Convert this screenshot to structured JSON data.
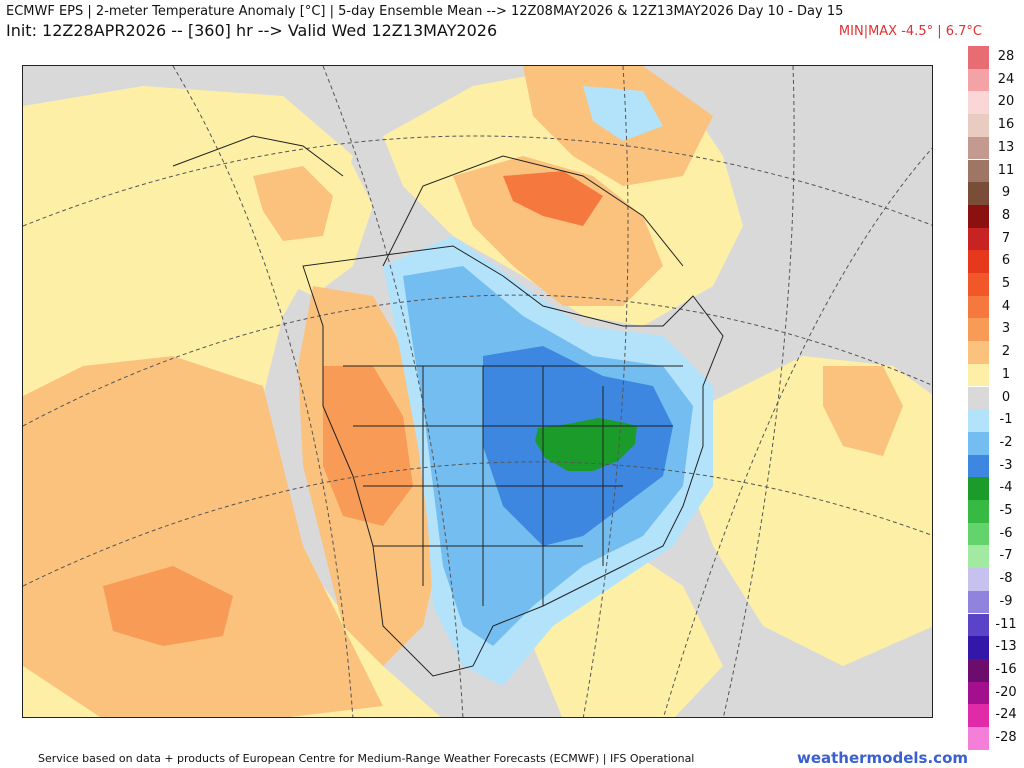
{
  "header": {
    "title_line1": "ECMWF EPS | 2-meter Temperature Anomaly [°C] | 5-day Ensemble Mean --> 12Z08MAY2026 & 12Z13MAY2026   Day 10 - Day 15",
    "title_line2": "Init: 12Z28APR2026 -- [360] hr --> Valid Wed 12Z13MAY2026",
    "minmax": "MIN|MAX -4.5° | 6.7°C"
  },
  "colorbar": {
    "levels": [
      {
        "label": "28",
        "color": "#e76d72"
      },
      {
        "label": "24",
        "color": "#f3a2a6"
      },
      {
        "label": "20",
        "color": "#fad6d6"
      },
      {
        "label": "16",
        "color": "#e9cbc2"
      },
      {
        "label": "13",
        "color": "#c49a90"
      },
      {
        "label": "11",
        "color": "#9f7565"
      },
      {
        "label": "9",
        "color": "#7a4d39"
      },
      {
        "label": "8",
        "color": "#8b1010"
      },
      {
        "label": "7",
        "color": "#c82323"
      },
      {
        "label": "6",
        "color": "#e6381d"
      },
      {
        "label": "5",
        "color": "#f2572a"
      },
      {
        "label": "4",
        "color": "#f5793e"
      },
      {
        "label": "3",
        "color": "#f79b57"
      },
      {
        "label": "2",
        "color": "#fbc27e"
      },
      {
        "label": "1",
        "color": "#fdf0a6"
      },
      {
        "label": "0",
        "color": "#d9d9d9"
      },
      {
        "label": "-1",
        "color": "#b3e3fb"
      },
      {
        "label": "-2",
        "color": "#74bdf0"
      },
      {
        "label": "-3",
        "color": "#3d87e0"
      },
      {
        "label": "-4",
        "color": "#1b9c2a"
      },
      {
        "label": "-5",
        "color": "#36ba43"
      },
      {
        "label": "-6",
        "color": "#63d46c"
      },
      {
        "label": "-7",
        "color": "#a2e9a2"
      },
      {
        "label": "-8",
        "color": "#c7c1ef"
      },
      {
        "label": "-9",
        "color": "#8f83de"
      },
      {
        "label": "-11",
        "color": "#5a43c7"
      },
      {
        "label": "-13",
        "color": "#3217a8"
      },
      {
        "label": "-16",
        "color": "#6c0c6c"
      },
      {
        "label": "-20",
        "color": "#a3108d"
      },
      {
        "label": "-24",
        "color": "#e02aa8"
      },
      {
        "label": "-28",
        "color": "#f47fd8"
      }
    ]
  },
  "footer": {
    "credit": "Service based on data + products of European Centre for Medium-Range Weather Forecasts (ECMWF) | IFS Operational",
    "site": "weathermodels.com"
  },
  "map": {
    "colors": {
      "ocean_neutral": "#d9d9d9",
      "warm_1": "#fdf0a6",
      "warm_2": "#fbc27e",
      "warm_3": "#f79b57",
      "warm_4": "#f5793e",
      "cold_1": "#b3e3fb",
      "cold_2": "#74bdf0",
      "cold_3": "#3d87e0",
      "cold_4": "#1b9c2a",
      "boundary": "#222222",
      "graticule": "#555555"
    }
  }
}
